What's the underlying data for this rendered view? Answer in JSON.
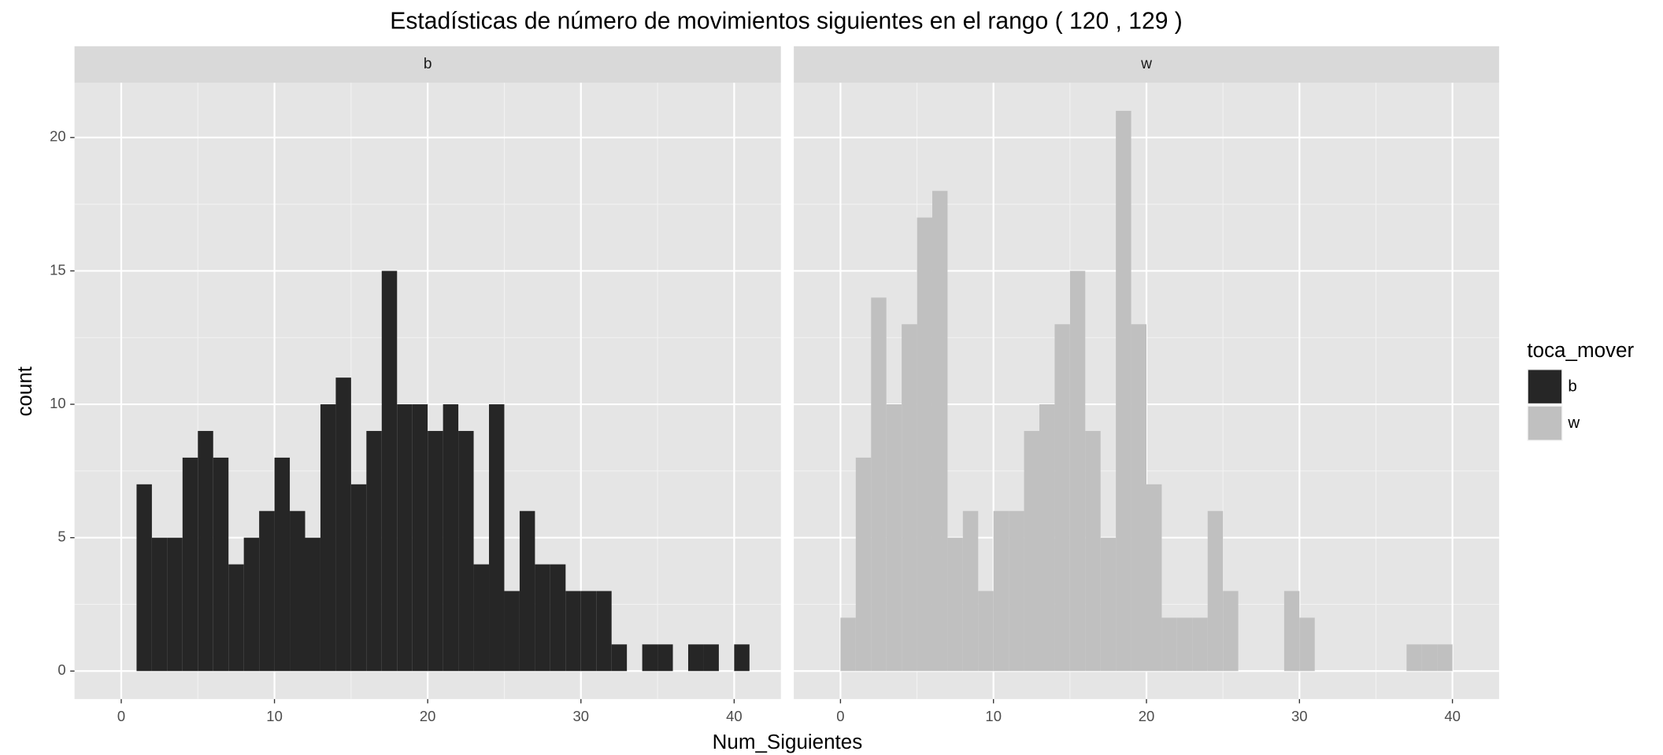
{
  "chart_data": {
    "type": "histogram",
    "title": "Estadísticas de número de movimientos siguientes en el rango ( 120 , 129 )",
    "xlabel": "Num_Siguientes",
    "ylabel": "count",
    "legend_title": "toca_mover",
    "xlim": [
      -3.05,
      43.05
    ],
    "xticks": [
      0,
      10,
      20,
      30,
      40
    ],
    "ylim": [
      -1.05,
      22.05
    ],
    "yticks": [
      0,
      5,
      10,
      15,
      20
    ],
    "grid": true,
    "series": [
      {
        "name": "b",
        "color": "#262626",
        "bins": [
          1,
          2,
          3,
          4,
          5,
          6,
          7,
          8,
          9,
          10,
          11,
          12,
          13,
          14,
          15,
          16,
          17,
          18,
          19,
          20,
          21,
          22,
          23,
          24,
          25,
          26,
          27,
          28,
          29,
          30,
          31,
          32,
          33,
          34,
          35,
          36,
          37,
          38,
          39,
          40,
          41
        ],
        "counts": [
          7,
          5,
          5,
          8,
          9,
          8,
          4,
          5,
          6,
          8,
          6,
          5,
          10,
          11,
          7,
          9,
          15,
          10,
          10,
          9,
          10,
          9,
          4,
          10,
          3,
          6,
          4,
          4,
          3,
          3,
          3,
          1,
          0,
          1,
          1,
          0,
          1,
          1,
          0,
          1
        ]
      },
      {
        "name": "w",
        "color": "#c0c0c0",
        "bins": [
          0,
          1,
          2,
          3,
          4,
          5,
          6,
          7,
          8,
          9,
          10,
          11,
          12,
          13,
          14,
          15,
          16,
          17,
          18,
          19,
          20,
          21,
          22,
          23,
          24,
          25,
          26,
          27,
          28,
          29,
          30,
          31,
          32,
          33,
          34,
          35,
          36,
          37,
          38,
          39,
          40
        ],
        "counts": [
          2,
          8,
          14,
          10,
          13,
          17,
          18,
          5,
          6,
          3,
          6,
          6,
          9,
          10,
          13,
          15,
          9,
          5,
          21,
          13,
          7,
          2,
          2,
          2,
          6,
          3,
          0,
          0,
          0,
          3,
          2,
          0,
          0,
          0,
          0,
          0,
          0,
          1,
          1,
          1
        ]
      }
    ]
  }
}
